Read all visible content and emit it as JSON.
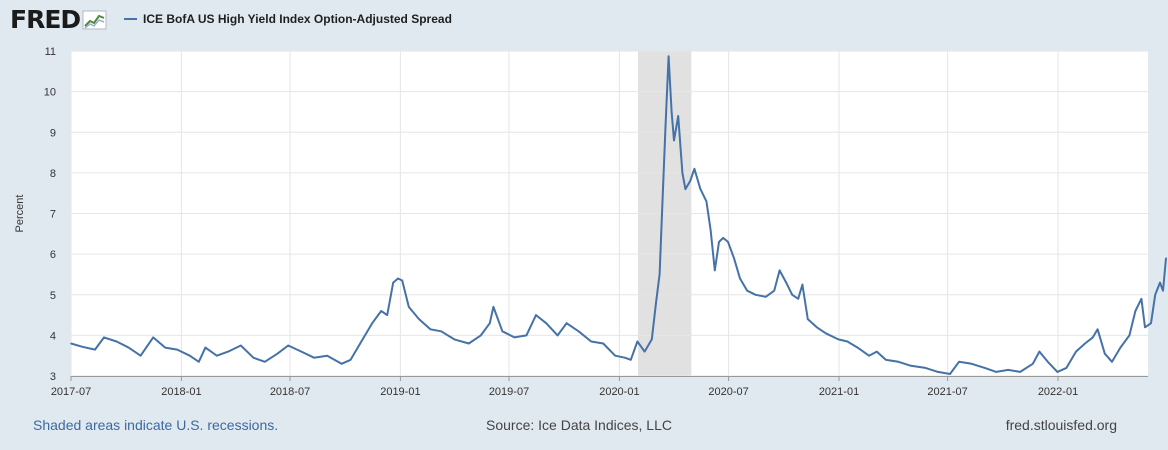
{
  "logo": {
    "text": "FRED",
    "icon": "fred-chart-icon"
  },
  "legend": {
    "label": "ICE BofA US High Yield Index Option-Adjusted Spread"
  },
  "footer": {
    "note": "Shaded areas indicate U.S. recessions.",
    "source": "Source: Ice Data Indices, LLC",
    "url": "fred.stlouisfed.org"
  },
  "colors": {
    "line": "#4572a7",
    "recession": "#e1e1e1",
    "grid": "#e6e6e6",
    "plot_bg": "#ffffff",
    "page_bg": "#e1e9f0"
  },
  "chart_data": {
    "type": "line",
    "title": "",
    "xlabel": "",
    "ylabel": "Percent",
    "ylim": [
      3,
      11
    ],
    "xlim": [
      "2017-07-01",
      "2022-05-31"
    ],
    "yticks": [
      3,
      4,
      5,
      6,
      7,
      8,
      9,
      10,
      11
    ],
    "xticks": [
      "2017-07",
      "2018-01",
      "2018-07",
      "2019-01",
      "2019-07",
      "2020-01",
      "2020-07",
      "2021-01",
      "2021-07",
      "2022-01"
    ],
    "grid": true,
    "recessions": [
      {
        "start": "2020-02-01",
        "end": "2020-04-30"
      }
    ],
    "series": [
      {
        "name": "ICE BofA US High Yield Index Option-Adjusted Spread",
        "points": [
          [
            "2017-07-01",
            3.8
          ],
          [
            "2017-07-20",
            3.72
          ],
          [
            "2017-08-10",
            3.65
          ],
          [
            "2017-08-25",
            3.95
          ],
          [
            "2017-09-15",
            3.85
          ],
          [
            "2017-10-05",
            3.7
          ],
          [
            "2017-10-25",
            3.5
          ],
          [
            "2017-11-15",
            3.95
          ],
          [
            "2017-12-05",
            3.7
          ],
          [
            "2017-12-25",
            3.65
          ],
          [
            "2018-01-15",
            3.5
          ],
          [
            "2018-01-30",
            3.35
          ],
          [
            "2018-02-10",
            3.7
          ],
          [
            "2018-03-01",
            3.5
          ],
          [
            "2018-03-20",
            3.6
          ],
          [
            "2018-04-10",
            3.75
          ],
          [
            "2018-05-01",
            3.45
          ],
          [
            "2018-05-20",
            3.35
          ],
          [
            "2018-06-10",
            3.55
          ],
          [
            "2018-06-28",
            3.75
          ],
          [
            "2018-07-20",
            3.6
          ],
          [
            "2018-08-10",
            3.45
          ],
          [
            "2018-09-01",
            3.5
          ],
          [
            "2018-09-25",
            3.3
          ],
          [
            "2018-10-10",
            3.4
          ],
          [
            "2018-10-30",
            3.9
          ],
          [
            "2018-11-15",
            4.3
          ],
          [
            "2018-11-30",
            4.6
          ],
          [
            "2018-12-10",
            4.5
          ],
          [
            "2018-12-20",
            5.3
          ],
          [
            "2018-12-28",
            5.4
          ],
          [
            "2019-01-04",
            5.35
          ],
          [
            "2019-01-15",
            4.7
          ],
          [
            "2019-02-01",
            4.4
          ],
          [
            "2019-02-20",
            4.15
          ],
          [
            "2019-03-10",
            4.1
          ],
          [
            "2019-04-01",
            3.9
          ],
          [
            "2019-04-25",
            3.8
          ],
          [
            "2019-05-15",
            4.0
          ],
          [
            "2019-05-30",
            4.3
          ],
          [
            "2019-06-05",
            4.7
          ],
          [
            "2019-06-20",
            4.1
          ],
          [
            "2019-07-10",
            3.95
          ],
          [
            "2019-07-30",
            4.0
          ],
          [
            "2019-08-15",
            4.5
          ],
          [
            "2019-09-01",
            4.3
          ],
          [
            "2019-09-20",
            4.0
          ],
          [
            "2019-10-05",
            4.3
          ],
          [
            "2019-10-25",
            4.1
          ],
          [
            "2019-11-15",
            3.85
          ],
          [
            "2019-12-05",
            3.8
          ],
          [
            "2019-12-25",
            3.5
          ],
          [
            "2020-01-10",
            3.45
          ],
          [
            "2020-01-20",
            3.4
          ],
          [
            "2020-01-31",
            3.85
          ],
          [
            "2020-02-12",
            3.6
          ],
          [
            "2020-02-24",
            3.9
          ],
          [
            "2020-03-02",
            4.8
          ],
          [
            "2020-03-08",
            5.5
          ],
          [
            "2020-03-12",
            7.0
          ],
          [
            "2020-03-18",
            9.2
          ],
          [
            "2020-03-23",
            10.87
          ],
          [
            "2020-03-28",
            9.5
          ],
          [
            "2020-04-01",
            8.8
          ],
          [
            "2020-04-08",
            9.4
          ],
          [
            "2020-04-15",
            8.0
          ],
          [
            "2020-04-20",
            7.6
          ],
          [
            "2020-04-28",
            7.8
          ],
          [
            "2020-05-05",
            8.1
          ],
          [
            "2020-05-15",
            7.6
          ],
          [
            "2020-05-25",
            7.3
          ],
          [
            "2020-06-01",
            6.6
          ],
          [
            "2020-06-08",
            5.6
          ],
          [
            "2020-06-15",
            6.3
          ],
          [
            "2020-06-22",
            6.4
          ],
          [
            "2020-06-30",
            6.3
          ],
          [
            "2020-07-10",
            5.9
          ],
          [
            "2020-07-20",
            5.4
          ],
          [
            "2020-08-01",
            5.1
          ],
          [
            "2020-08-15",
            5.0
          ],
          [
            "2020-09-01",
            4.95
          ],
          [
            "2020-09-15",
            5.1
          ],
          [
            "2020-09-24",
            5.6
          ],
          [
            "2020-10-05",
            5.3
          ],
          [
            "2020-10-15",
            5.0
          ],
          [
            "2020-10-25",
            4.9
          ],
          [
            "2020-11-01",
            5.25
          ],
          [
            "2020-11-10",
            4.4
          ],
          [
            "2020-11-25",
            4.2
          ],
          [
            "2020-12-10",
            4.05
          ],
          [
            "2020-12-31",
            3.9
          ],
          [
            "2021-01-15",
            3.85
          ],
          [
            "2021-02-01",
            3.7
          ],
          [
            "2021-02-20",
            3.5
          ],
          [
            "2021-03-05",
            3.6
          ],
          [
            "2021-03-20",
            3.4
          ],
          [
            "2021-04-10",
            3.35
          ],
          [
            "2021-05-01",
            3.25
          ],
          [
            "2021-05-25",
            3.2
          ],
          [
            "2021-06-15",
            3.1
          ],
          [
            "2021-07-05",
            3.05
          ],
          [
            "2021-07-20",
            3.35
          ],
          [
            "2021-08-10",
            3.3
          ],
          [
            "2021-09-01",
            3.2
          ],
          [
            "2021-09-20",
            3.1
          ],
          [
            "2021-10-10",
            3.15
          ],
          [
            "2021-10-30",
            3.1
          ],
          [
            "2021-11-20",
            3.3
          ],
          [
            "2021-12-01",
            3.6
          ],
          [
            "2021-12-15",
            3.35
          ],
          [
            "2021-12-31",
            3.1
          ],
          [
            "2022-01-15",
            3.2
          ],
          [
            "2022-01-31",
            3.6
          ],
          [
            "2022-02-15",
            3.8
          ],
          [
            "2022-02-28",
            3.95
          ],
          [
            "2022-03-08",
            4.15
          ],
          [
            "2022-03-20",
            3.55
          ],
          [
            "2022-04-01",
            3.35
          ],
          [
            "2022-04-15",
            3.7
          ],
          [
            "2022-04-30",
            4.0
          ],
          [
            "2022-05-10",
            4.6
          ],
          [
            "2022-05-20",
            4.9
          ],
          [
            "2022-05-26",
            4.2
          ],
          [
            "2022-06-05",
            4.3
          ],
          [
            "2022-06-12",
            5.0
          ],
          [
            "2022-06-20",
            5.3
          ],
          [
            "2022-06-25",
            5.1
          ],
          [
            "2022-06-30",
            5.9
          ]
        ]
      }
    ]
  }
}
